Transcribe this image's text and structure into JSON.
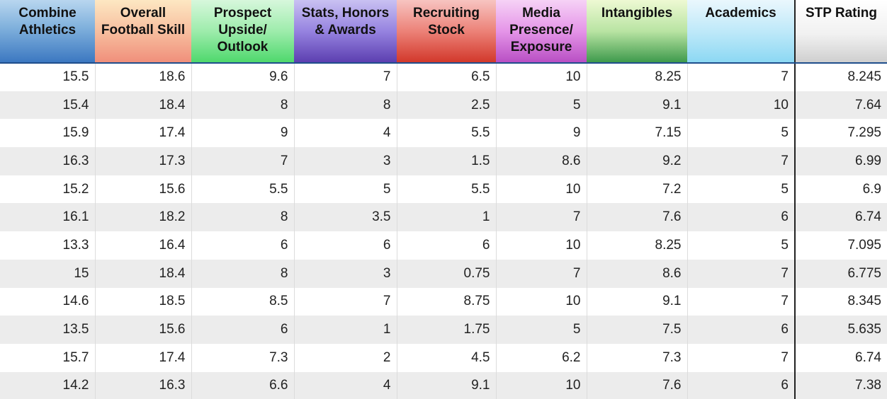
{
  "columns": [
    "Combine Athletics",
    "Overall Football Skill",
    "Prospect Upside/ Outlook",
    "Stats, Honors & Awards",
    "Recruiting Stock",
    "Media Presence/ Exposure",
    "Intangibles",
    "Academics",
    "STP Rating"
  ],
  "header_colors": {
    "combine_athletics": "#3c78c1",
    "overall_football_skill": "#f08f7b",
    "prospect_upside": "#4fd86d",
    "stats_honors": "#5c3fb0",
    "recruiting_stock": "#d2382b",
    "media_presence": "#b94fc4",
    "intangibles": "#3e9a4c",
    "academics": "#8cd8f3",
    "stp_rating": "#cfcfcf"
  },
  "rows": [
    [
      "15.5",
      "18.6",
      "9.6",
      "7",
      "6.5",
      "10",
      "8.25",
      "7",
      "8.245"
    ],
    [
      "15.4",
      "18.4",
      "8",
      "8",
      "2.5",
      "5",
      "9.1",
      "10",
      "7.64"
    ],
    [
      "15.9",
      "17.4",
      "9",
      "4",
      "5.5",
      "9",
      "7.15",
      "5",
      "7.295"
    ],
    [
      "16.3",
      "17.3",
      "7",
      "3",
      "1.5",
      "8.6",
      "9.2",
      "7",
      "6.99"
    ],
    [
      "15.2",
      "15.6",
      "5.5",
      "5",
      "5.5",
      "10",
      "7.2",
      "5",
      "6.9"
    ],
    [
      "16.1",
      "18.2",
      "8",
      "3.5",
      "1",
      "7",
      "7.6",
      "6",
      "6.74"
    ],
    [
      "13.3",
      "16.4",
      "6",
      "6",
      "6",
      "10",
      "8.25",
      "5",
      "7.095"
    ],
    [
      "15",
      "18.4",
      "8",
      "3",
      "0.75",
      "7",
      "8.6",
      "7",
      "6.775"
    ],
    [
      "14.6",
      "18.5",
      "8.5",
      "7",
      "8.75",
      "10",
      "9.1",
      "7",
      "8.345"
    ],
    [
      "13.5",
      "15.6",
      "6",
      "1",
      "1.75",
      "5",
      "7.5",
      "6",
      "5.635"
    ],
    [
      "15.7",
      "17.4",
      "7.3",
      "2",
      "4.5",
      "6.2",
      "7.3",
      "7",
      "6.74"
    ],
    [
      "14.2",
      "16.3",
      "6.6",
      "4",
      "9.1",
      "10",
      "7.6",
      "6",
      "7.38"
    ]
  ]
}
